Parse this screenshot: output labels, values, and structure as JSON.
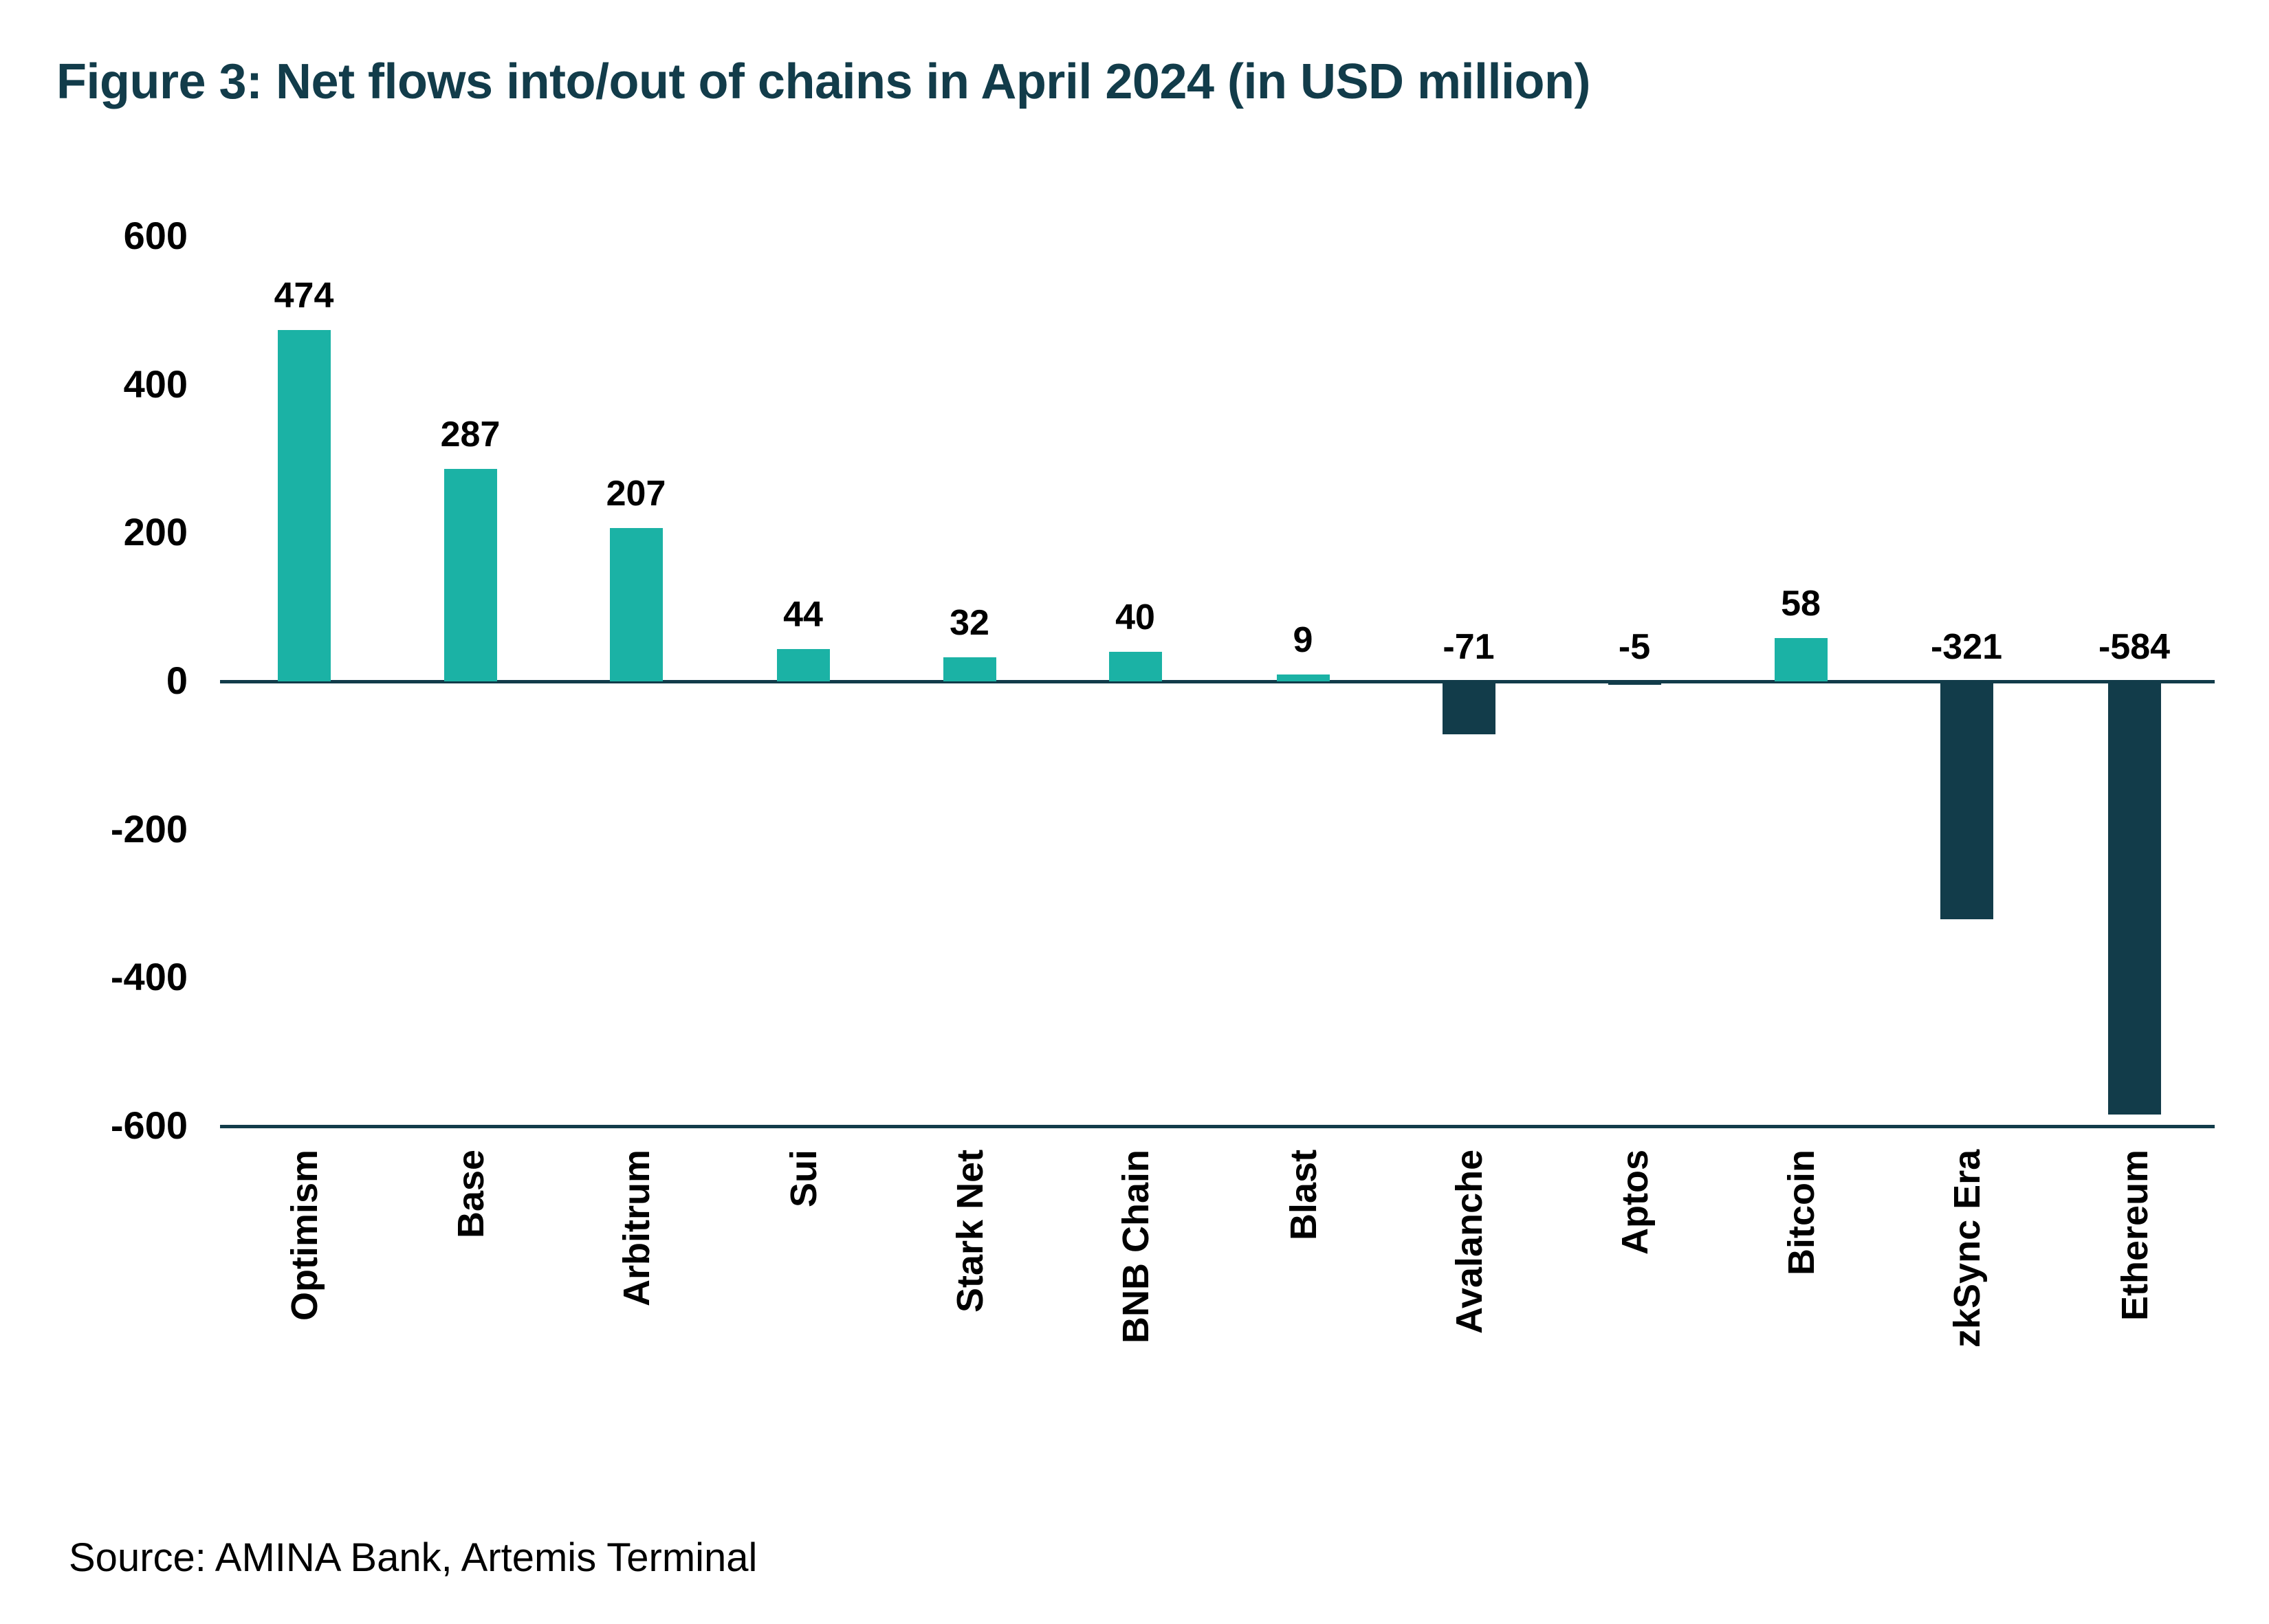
{
  "title": "Figure 3: Net flows into/out of chains in April 2024 (in USD million)",
  "source": "Source: AMINA Bank, Artemis Terminal",
  "colors": {
    "positive": "#1BB2A5",
    "negative": "#123C4A",
    "axis": "#123C4A",
    "title": "#123C4A"
  },
  "y_ticks": [
    "600",
    "400",
    "200",
    "0",
    "-200",
    "-400",
    "-600"
  ],
  "chart_data": {
    "type": "bar",
    "title": "Figure 3: Net flows into/out of chains in April 2024 (in USD million)",
    "xlabel": "",
    "ylabel": "USD million",
    "categories": [
      "Optimism",
      "Base",
      "Arbitrum",
      "Sui",
      "Stark Net",
      "BNB Chain",
      "Blast",
      "Avalanche",
      "Aptos",
      "Bitcoin",
      "zkSync Era",
      "Ethereum"
    ],
    "values": [
      474,
      287,
      207,
      44,
      32,
      40,
      9,
      -71,
      -5,
      58,
      -321,
      -584
    ],
    "value_labels": [
      "474",
      "287",
      "207",
      "44",
      "32",
      "40",
      "9",
      "-71",
      "-5",
      "58",
      "-321",
      "-584"
    ],
    "ylim": [
      -600,
      600
    ],
    "yticks": [
      600,
      400,
      200,
      0,
      -200,
      -400,
      -600
    ],
    "grid": false,
    "legend": null,
    "annotations": [
      "Source: AMINA Bank, Artemis Terminal"
    ]
  }
}
